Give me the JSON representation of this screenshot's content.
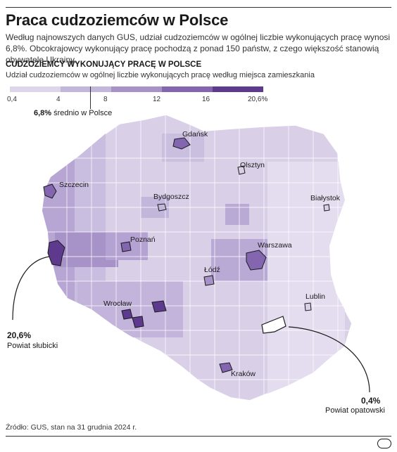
{
  "title": "Praca cudzoziemców w Polsce",
  "lead": "Według najnowszych danych GUS, udział cudzoziemców w ogólnej liczbie wykonujących pracę wynosi 6,8%. Obcokrajowcy wykonujący pracę pochodzą z ponad 150 państw, z czego większość stanowią obywatele Ukrainy.",
  "section_title": "CUDZOZIEMCY WYKONUJĄCY PRACĘ W POLSCE",
  "section_subtitle": "Udział cudzoziemców w ogólnej liczbie wykonujących pracę według miejsca zamieszkania",
  "legend": {
    "ticks": [
      "0,4",
      "4",
      "8",
      "12",
      "16",
      "20,6%"
    ],
    "colors": [
      "#ddd5ea",
      "#c3b6db",
      "#a792c8",
      "#8466b0",
      "#5e3a8f"
    ],
    "average_value": "6,8%",
    "average_text": "średnio w Polsce"
  },
  "cities": [
    "Gdańsk",
    "Olsztyn",
    "Szczecin",
    "Bydgoszcz",
    "Białystok",
    "Poznań",
    "Warszawa",
    "Łódź",
    "Lublin",
    "Wrocław",
    "Kraków"
  ],
  "callouts": {
    "max": {
      "value": "20,6%",
      "label": "Powiat słubicki"
    },
    "min": {
      "value": "0,4%",
      "label": "Powiat opatowski"
    }
  },
  "source": "Źródło: GUS, stan na 31 grudnia 2024 r.",
  "logo": "pap"
}
